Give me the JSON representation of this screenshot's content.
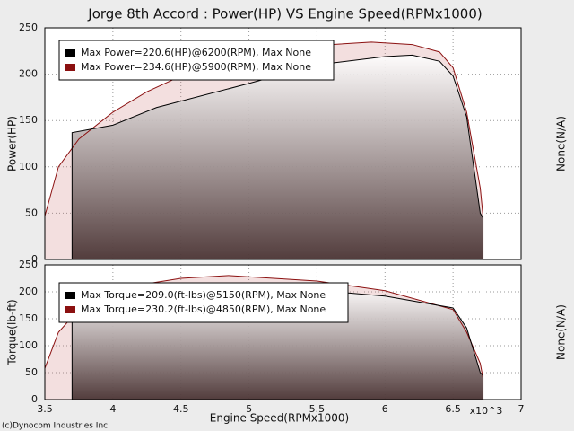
{
  "chart_data": [
    {
      "type": "line",
      "title": "Jorge 8th Accord : Power(HP) VS Engine Speed(RPMx1000)",
      "ylabel": "Power(HP)",
      "y2label": "None(N/A)",
      "xlim": [
        3.5,
        7
      ],
      "xticks": [
        3.5,
        4,
        4.5,
        5,
        5.5,
        6,
        6.5,
        7
      ],
      "ylim": [
        0,
        250
      ],
      "yticks": [
        0,
        50,
        100,
        150,
        200,
        250
      ],
      "grid": true,
      "series": [
        {
          "name": "Max Power=220.6(HP)@6200(RPM), Max None",
          "color": "#000000",
          "x": [
            3.7,
            3.7,
            4.0,
            4.32,
            5.0,
            5.5,
            6.0,
            6.2,
            6.4,
            6.5,
            6.6,
            6.7,
            6.72,
            6.72
          ],
          "values": [
            0,
            137,
            145,
            164,
            190,
            210,
            219,
            220.6,
            214,
            198,
            154,
            50,
            45,
            0
          ]
        },
        {
          "name": "Max Power=234.6(HP)@5900(RPM), Max None",
          "color": "#8b1010",
          "x": [
            3.5,
            3.6,
            3.75,
            4.0,
            4.25,
            4.5,
            5.0,
            5.5,
            5.9,
            6.2,
            6.4,
            6.5,
            6.6,
            6.7,
            6.72,
            6.72
          ],
          "values": [
            47,
            100,
            130,
            159,
            181,
            198,
            219,
            231,
            234.6,
            232,
            224,
            207,
            159,
            77,
            47,
            0
          ]
        }
      ]
    },
    {
      "type": "line",
      "ylabel": "Torque(lb-ft)",
      "y2label": "None(N/A)",
      "xlabel": "Engine Speed(RPMx1000)",
      "x_annotation": "x10^3",
      "xlim": [
        3.5,
        7
      ],
      "xticks": [
        3.5,
        4,
        4.5,
        5,
        5.5,
        6,
        6.5,
        7
      ],
      "ylim": [
        0,
        250
      ],
      "yticks": [
        0,
        50,
        100,
        150,
        200,
        250
      ],
      "grid": true,
      "series": [
        {
          "name": "Max Torque=209.0(ft-lbs)@5150(RPM), Max None",
          "color": "#000000",
          "x": [
            3.7,
            3.7,
            4.0,
            4.5,
            5.15,
            5.5,
            6.0,
            6.5,
            6.6,
            6.7,
            6.72,
            6.72
          ],
          "values": [
            0,
            205,
            206,
            206,
            209,
            203,
            192,
            170,
            133,
            50,
            45,
            0
          ]
        },
        {
          "name": "Max Torque=230.2(ft-lbs)@4850(RPM), Max None",
          "color": "#8b1010",
          "x": [
            3.5,
            3.6,
            3.75,
            4.0,
            4.5,
            4.85,
            5.5,
            6.0,
            6.5,
            6.6,
            6.7,
            6.72,
            6.72
          ],
          "values": [
            58,
            125,
            167,
            205,
            225,
            230.2,
            220,
            202,
            167,
            125,
            67,
            40,
            0
          ]
        }
      ]
    }
  ],
  "footer": "(c)Dynocom Industries Inc."
}
